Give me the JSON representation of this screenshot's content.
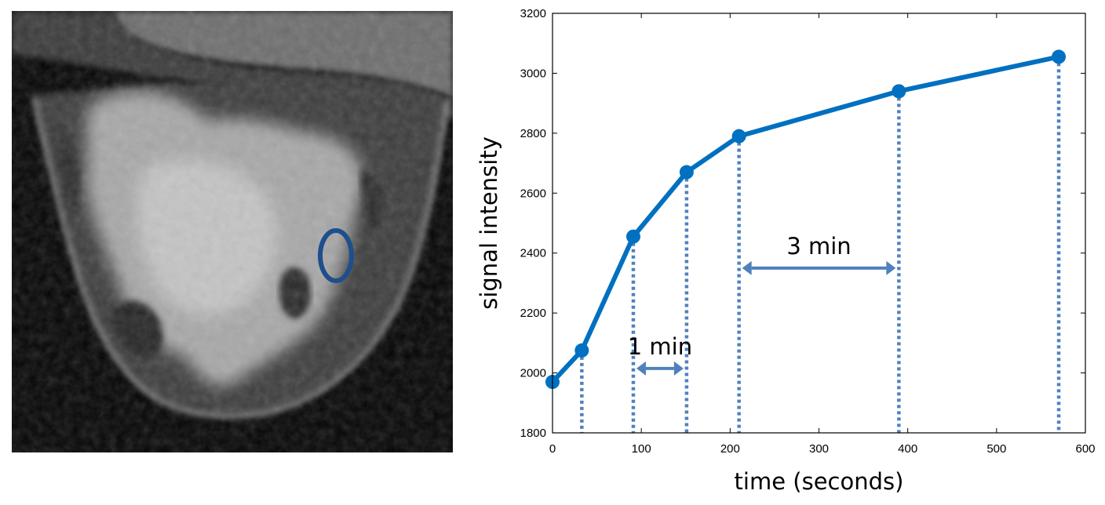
{
  "image_panel": {
    "alt": "breast MRI slice with region of interest",
    "roi_shape": "ellipse",
    "roi_color": "#1f4e8c"
  },
  "chart_data": {
    "type": "line",
    "title": "",
    "xlabel": "time (seconds)",
    "ylabel": "signal intensity",
    "xlim": [
      0,
      600
    ],
    "ylim": [
      1800,
      3200
    ],
    "xticks": [
      0,
      100,
      200,
      300,
      400,
      500,
      600
    ],
    "yticks": [
      1800,
      2000,
      2200,
      2400,
      2600,
      2800,
      3000,
      3200
    ],
    "grid": false,
    "legend": "none",
    "series": [
      {
        "x": [
          0,
          33,
          91,
          151,
          210,
          390,
          570
        ],
        "y": [
          1970,
          2075,
          2455,
          2670,
          2790,
          2940,
          3055
        ],
        "color": "#0070c0",
        "markers": true,
        "drop_lines": true,
        "drop_line_color": "#4f81bd"
      }
    ],
    "annotations": [
      {
        "text": "1 min",
        "from_x": 91,
        "to_x": 151,
        "arrow_y": 2015
      },
      {
        "text": "3 min",
        "from_x": 210,
        "to_x": 390,
        "arrow_y": 2350
      }
    ],
    "arrow_color": "#4f81bd"
  }
}
